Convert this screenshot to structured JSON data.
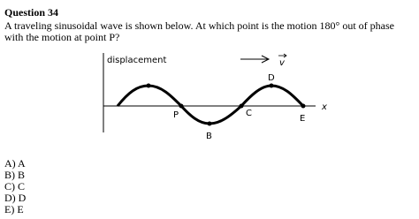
{
  "header": {
    "title": "Question 34"
  },
  "question": {
    "text": "A traveling sinusoidal wave is shown below. At which point is the motion 180° out of phase with the motion at point P?"
  },
  "diagram": {
    "axis_label": "displacement",
    "velocity_label": "v",
    "x_label": "x",
    "points": [
      "P",
      "B",
      "C",
      "D",
      "E"
    ]
  },
  "options": [
    "A) A",
    "B) B",
    "C) C",
    "D) D",
    "E) E"
  ]
}
